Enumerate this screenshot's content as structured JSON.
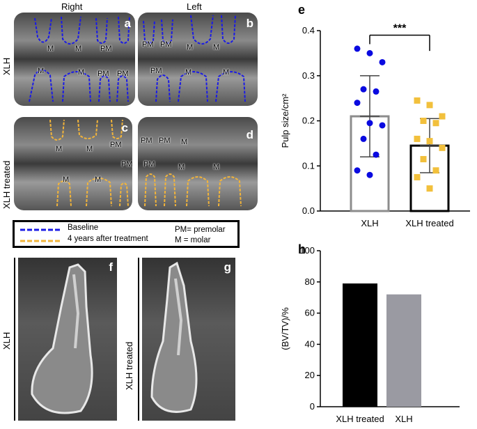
{
  "panels": {
    "col_right": "Right",
    "col_left": "Left",
    "row_xlh": "XLH",
    "row_xlh_treated": "XLH treated",
    "letters": {
      "a": "a",
      "b": "b",
      "c": "c",
      "d": "d",
      "e": "e",
      "f": "f",
      "g": "g",
      "h": "h"
    },
    "tooth_labels": {
      "M": "M",
      "PM": "PM"
    },
    "ct_label_f": "XLH",
    "ct_label_g": "XLH treated"
  },
  "legend": {
    "baseline": "Baseline",
    "after": "4 years after treatment",
    "pm_def": "PM= premolar",
    "m_def": "M = molar",
    "colors": {
      "baseline": "#1a1ae6",
      "after": "#f2b43a"
    }
  },
  "chart_data": [
    {
      "type": "bar",
      "id": "e",
      "ylabel": "Pulp size/cm²",
      "ylim": [
        0,
        0.4
      ],
      "yticks": [
        "0.0",
        "0.1",
        "0.2",
        "0.3",
        "0.4"
      ],
      "categories": [
        "XLH",
        "XLH treated"
      ],
      "values": [
        0.21,
        0.145
      ],
      "sd": [
        0.09,
        0.06
      ],
      "points": [
        [
          0.36,
          0.35,
          0.33,
          0.27,
          0.265,
          0.24,
          0.195,
          0.19,
          0.16,
          0.125,
          0.09,
          0.08
        ],
        [
          0.245,
          0.235,
          0.21,
          0.2,
          0.195,
          0.16,
          0.155,
          0.14,
          0.115,
          0.09,
          0.075,
          0.05
        ]
      ],
      "point_colors": [
        "#0a0ae0",
        "#f2c03c"
      ],
      "bar_edge_colors": [
        "#8c8c8c",
        "#000000"
      ],
      "significance": "***"
    },
    {
      "type": "bar",
      "id": "h",
      "ylabel": "(BV/TV)/%",
      "ylim": [
        0,
        100
      ],
      "yticks": [
        "0",
        "20",
        "40",
        "60",
        "80",
        "100"
      ],
      "categories": [
        "XLH treated",
        "XLH"
      ],
      "values": [
        79,
        72
      ],
      "bar_colors": [
        "#000000",
        "#9a9aa2"
      ]
    }
  ]
}
